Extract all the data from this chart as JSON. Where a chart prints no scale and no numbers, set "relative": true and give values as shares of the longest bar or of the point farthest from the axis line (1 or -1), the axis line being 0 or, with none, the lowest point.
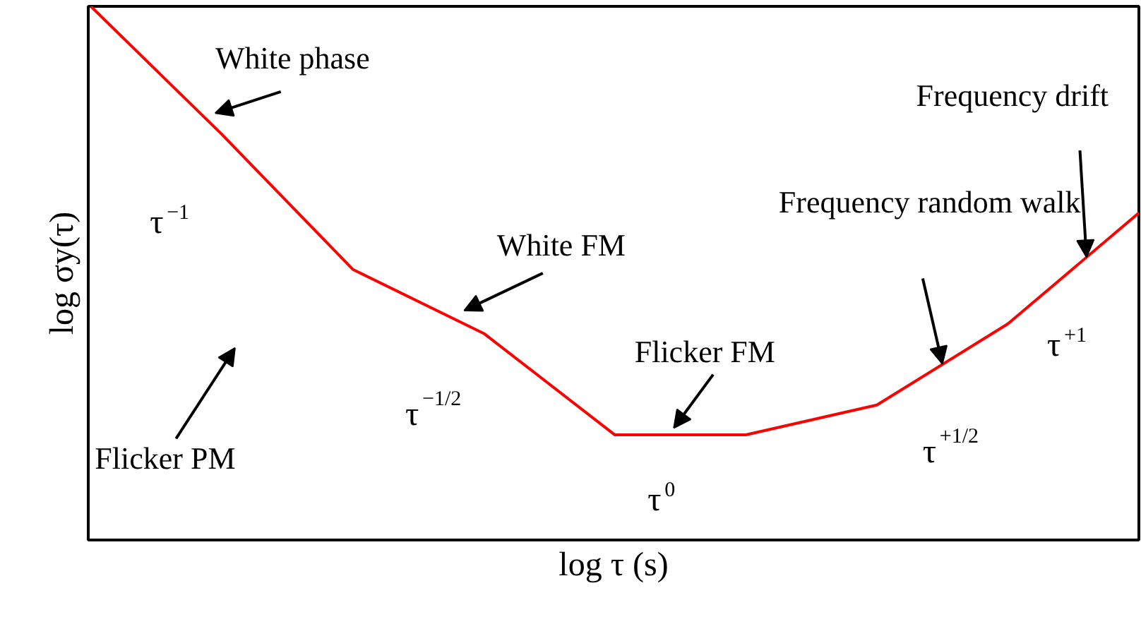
{
  "chart_data": {
    "type": "line",
    "xlabel": "log τ (s)",
    "ylabel": "log σy(τ)",
    "categories": [
      null,
      null,
      null,
      null,
      null,
      null,
      null,
      null,
      null
    ],
    "relative": true,
    "series": [
      {
        "color": "#ff0000",
        "values": [
          1,
          0.76,
          0.507,
          0.387,
          0.197,
          0.197,
          0.253,
          0.405,
          0.613
        ]
      }
    ],
    "annotations": [
      "White phase",
      "τ$^{−1}$",
      "Flicker PM",
      "White FM",
      "τ$^{−1/2}$",
      "Flicker FM",
      "τ$^{0}$",
      "Frequency random walk",
      "τ$^{+1/2}$",
      "Frequency drift",
      "τ$^{+1}$"
    ]
  }
}
